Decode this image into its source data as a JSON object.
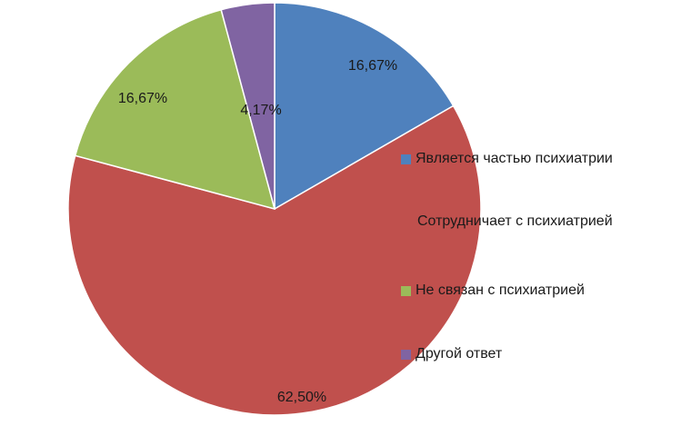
{
  "chart_data": {
    "type": "pie",
    "title": "",
    "start_angle_deg": 0,
    "direction": "clockwise",
    "slices": [
      {
        "label": "Является частью психиатрии",
        "value": 16.67,
        "display": "16,67%",
        "color": "#4F81BD"
      },
      {
        "label": "Сотрудничает с психиатрией",
        "value": 62.5,
        "display": "62,50%",
        "color": "#C0504D"
      },
      {
        "label": "Не связан с психиатрией",
        "value": 16.67,
        "display": "16,67%",
        "color": "#9BBB59"
      },
      {
        "label": "Другой ответ",
        "value": 4.17,
        "display": "4,17%",
        "color": "#8064A2"
      }
    ],
    "legend": {
      "placement": "right",
      "entries": [
        {
          "label": "Является частью психиатрии",
          "show_swatch": true
        },
        {
          "label": "Сотрудничает с психиатрией",
          "show_swatch": false
        },
        {
          "label": "Не связан с психиатрией",
          "show_swatch": true
        },
        {
          "label": "Другой ответ",
          "show_swatch": true
        }
      ]
    }
  }
}
